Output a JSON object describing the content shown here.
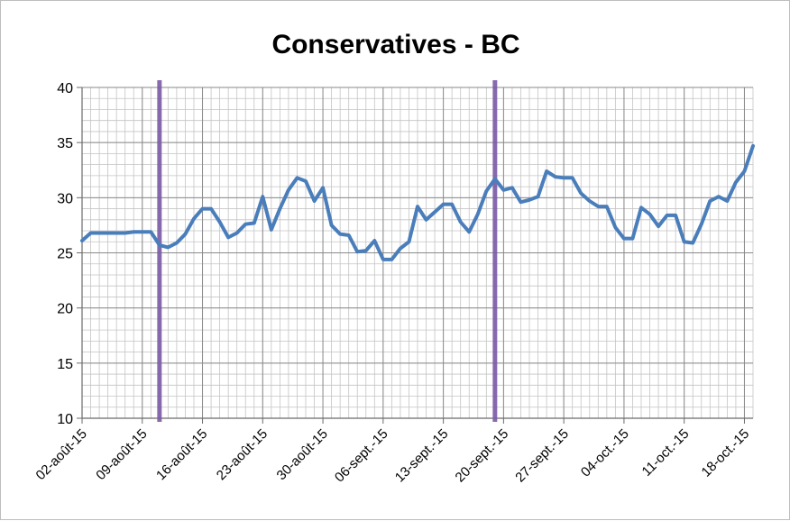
{
  "chart_data": {
    "type": "line",
    "title": "Conservatives - BC",
    "xlabel": "",
    "ylabel": "",
    "ylim": [
      10,
      40
    ],
    "yticks": [
      "10",
      "15",
      "20",
      "25",
      "30",
      "35",
      "40"
    ],
    "xticks": [
      "02-août-15",
      "09-août-15",
      "16-août-15",
      "23-août-15",
      "30-août-15",
      "06-sept.-15",
      "13-sept.-15",
      "20-sept.-15",
      "27-sept.-15",
      "04-oct.-15",
      "11-oct.-15",
      "18-oct.-15"
    ],
    "grid": true,
    "legend": "none",
    "x_start": "02-août-15",
    "x_end": "18-oct.-15",
    "series_color": "#4a7ebb",
    "marker_color": "#7b5aa6",
    "vertical_markers": [
      "11-août-15",
      "19-sept.-15"
    ],
    "series": [
      {
        "values": [
          26.1,
          26.8,
          26.8,
          26.8,
          26.8,
          26.8,
          26.9,
          26.9,
          26.9,
          25.7,
          25.5,
          25.9,
          26.7,
          28.1,
          29.0,
          29.0,
          27.8,
          26.4,
          26.8,
          27.6,
          27.7,
          30.1,
          27.1,
          29.0,
          30.7,
          31.8,
          31.5,
          29.7,
          30.9,
          27.5,
          26.7,
          26.6,
          25.1,
          25.2,
          26.1,
          24.4,
          24.4,
          25.4,
          26.0,
          29.2,
          28.0,
          28.7,
          29.4,
          29.4,
          27.8,
          26.9,
          28.5,
          30.6,
          31.7,
          30.7,
          30.9,
          29.6,
          29.8,
          30.1,
          32.4,
          31.9,
          31.8,
          31.8,
          30.4,
          29.7,
          29.2,
          29.2,
          27.3,
          26.3,
          26.3,
          29.1,
          28.5,
          27.4,
          28.4,
          28.4,
          26.0,
          25.9,
          27.6,
          29.7,
          30.1,
          29.7,
          31.4,
          32.4,
          34.7
        ]
      }
    ]
  }
}
